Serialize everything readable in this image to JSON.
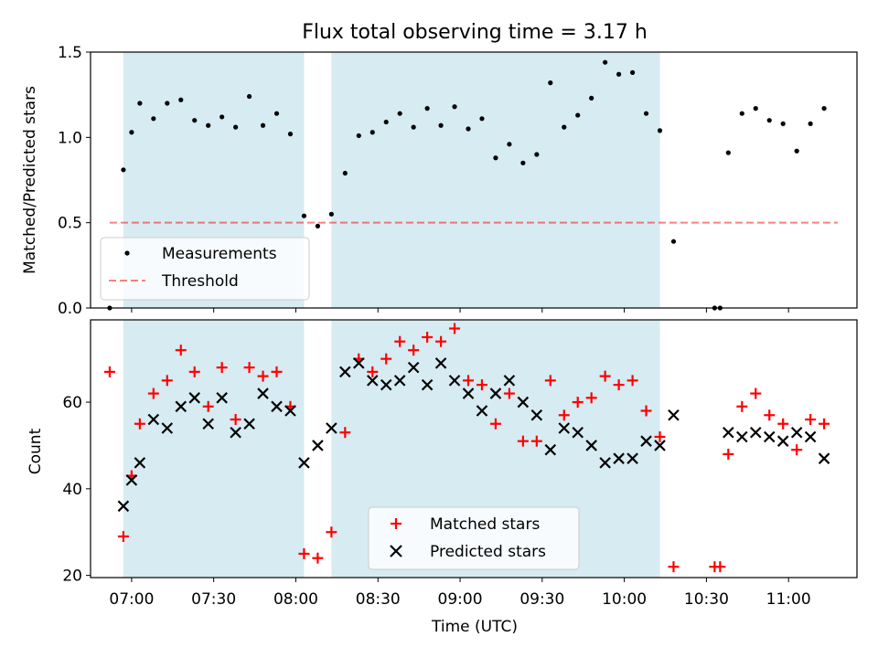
{
  "chart_data": [
    {
      "type": "scatter",
      "title": "Flux total observing time = 3.17 h",
      "xlabel": "",
      "ylabel": "Matched/Predicted stars",
      "ylim": [
        0.0,
        1.5
      ],
      "yticks": [
        "0.0",
        "0.5",
        "1.0",
        "1.5"
      ],
      "shaded_intervals": [
        [
          "06:57",
          "08:03"
        ],
        [
          "08:13",
          "10:13"
        ]
      ],
      "shade_color": "#add8e6",
      "threshold": {
        "name": "Threshold",
        "value": 0.5,
        "color": "#ff0000",
        "style": "dashed",
        "x_range": [
          "06:52",
          "11:18"
        ]
      },
      "legend_position": "lower-left",
      "series": [
        {
          "name": "Measurements",
          "color": "#000000",
          "marker": "dot",
          "x": [
            "06:52",
            "06:57",
            "07:00",
            "07:03",
            "07:08",
            "07:13",
            "07:18",
            "07:23",
            "07:28",
            "07:33",
            "07:38",
            "07:43",
            "07:48",
            "07:53",
            "07:58",
            "08:03",
            "08:08",
            "08:13",
            "08:18",
            "08:23",
            "08:28",
            "08:33",
            "08:38",
            "08:43",
            "08:48",
            "08:53",
            "08:58",
            "09:03",
            "09:08",
            "09:13",
            "09:18",
            "09:23",
            "09:28",
            "09:33",
            "09:38",
            "09:43",
            "09:48",
            "09:53",
            "09:58",
            "10:03",
            "10:08",
            "10:13",
            "10:18",
            "10:33",
            "10:35",
            "10:38",
            "10:43",
            "10:48",
            "10:53",
            "10:58",
            "11:03",
            "11:08",
            "11:13"
          ],
          "values": [
            0.0,
            0.81,
            1.03,
            1.2,
            1.11,
            1.2,
            1.22,
            1.1,
            1.07,
            1.12,
            1.06,
            1.24,
            1.07,
            1.14,
            1.02,
            0.54,
            0.48,
            0.55,
            0.79,
            1.01,
            1.03,
            1.09,
            1.14,
            1.06,
            1.17,
            1.07,
            1.18,
            1.05,
            1.11,
            0.88,
            0.96,
            0.85,
            0.9,
            1.32,
            1.06,
            1.13,
            1.23,
            1.44,
            1.37,
            1.38,
            1.14,
            1.04,
            0.39,
            0.0,
            0.0,
            0.91,
            1.14,
            1.17,
            1.1,
            1.08,
            0.92,
            1.08,
            1.17
          ]
        }
      ]
    },
    {
      "type": "scatter",
      "title": "",
      "xlabel": "Time (UTC)",
      "ylabel": "Count",
      "ylim": [
        19.5,
        79
      ],
      "yticks": [
        "20",
        "40",
        "60"
      ],
      "xticks": [
        "07:00",
        "07:30",
        "08:00",
        "08:30",
        "09:00",
        "09:30",
        "10:00",
        "10:30",
        "11:00"
      ],
      "x_range": [
        "06:45",
        "11:25"
      ],
      "shaded_intervals": [
        [
          "06:57",
          "08:03"
        ],
        [
          "08:13",
          "10:13"
        ]
      ],
      "legend_position": "bottom-center",
      "series": [
        {
          "name": "Matched stars",
          "color": "#ff0000",
          "marker": "plus",
          "x": [
            "06:52",
            "06:57",
            "07:00",
            "07:03",
            "07:08",
            "07:13",
            "07:18",
            "07:23",
            "07:28",
            "07:33",
            "07:38",
            "07:43",
            "07:48",
            "07:53",
            "07:58",
            "08:03",
            "08:08",
            "08:13",
            "08:18",
            "08:23",
            "08:28",
            "08:33",
            "08:38",
            "08:43",
            "08:48",
            "08:53",
            "08:58",
            "09:03",
            "09:08",
            "09:13",
            "09:18",
            "09:23",
            "09:28",
            "09:33",
            "09:38",
            "09:43",
            "09:48",
            "09:53",
            "09:58",
            "10:03",
            "10:08",
            "10:13",
            "10:18",
            "10:33",
            "10:35",
            "10:38",
            "10:43",
            "10:48",
            "10:53",
            "10:58",
            "11:03",
            "11:08",
            "11:13"
          ],
          "values": [
            67,
            29,
            43,
            55,
            62,
            65,
            72,
            67,
            59,
            68,
            56,
            68,
            66,
            67,
            59,
            25,
            24,
            30,
            53,
            70,
            67,
            70,
            74,
            72,
            75,
            74,
            77,
            65,
            64,
            55,
            62,
            51,
            51,
            65,
            57,
            60,
            61,
            66,
            64,
            65,
            58,
            52,
            22,
            22,
            22,
            48,
            59,
            62,
            57,
            55,
            49,
            56,
            55
          ]
        },
        {
          "name": "Predicted stars",
          "color": "#000000",
          "marker": "x",
          "x": [
            "06:57",
            "07:00",
            "07:03",
            "07:08",
            "07:13",
            "07:18",
            "07:23",
            "07:28",
            "07:33",
            "07:38",
            "07:43",
            "07:48",
            "07:53",
            "07:58",
            "08:03",
            "08:08",
            "08:13",
            "08:18",
            "08:23",
            "08:28",
            "08:33",
            "08:38",
            "08:43",
            "08:48",
            "08:53",
            "08:58",
            "09:03",
            "09:08",
            "09:13",
            "09:18",
            "09:23",
            "09:28",
            "09:33",
            "09:38",
            "09:43",
            "09:48",
            "09:53",
            "09:58",
            "10:03",
            "10:08",
            "10:13",
            "10:18",
            "10:38",
            "10:43",
            "10:48",
            "10:53",
            "10:58",
            "11:03",
            "11:08",
            "11:13"
          ],
          "values": [
            36,
            42,
            46,
            56,
            54,
            59,
            61,
            55,
            61,
            53,
            55,
            62,
            59,
            58,
            46,
            50,
            54,
            67,
            69,
            65,
            64,
            65,
            68,
            64,
            69,
            65,
            62,
            58,
            62,
            65,
            60,
            57,
            49,
            54,
            53,
            50,
            46,
            47,
            47,
            51,
            50,
            57,
            53,
            52,
            53,
            52,
            51,
            53,
            52,
            47
          ]
        }
      ]
    }
  ]
}
